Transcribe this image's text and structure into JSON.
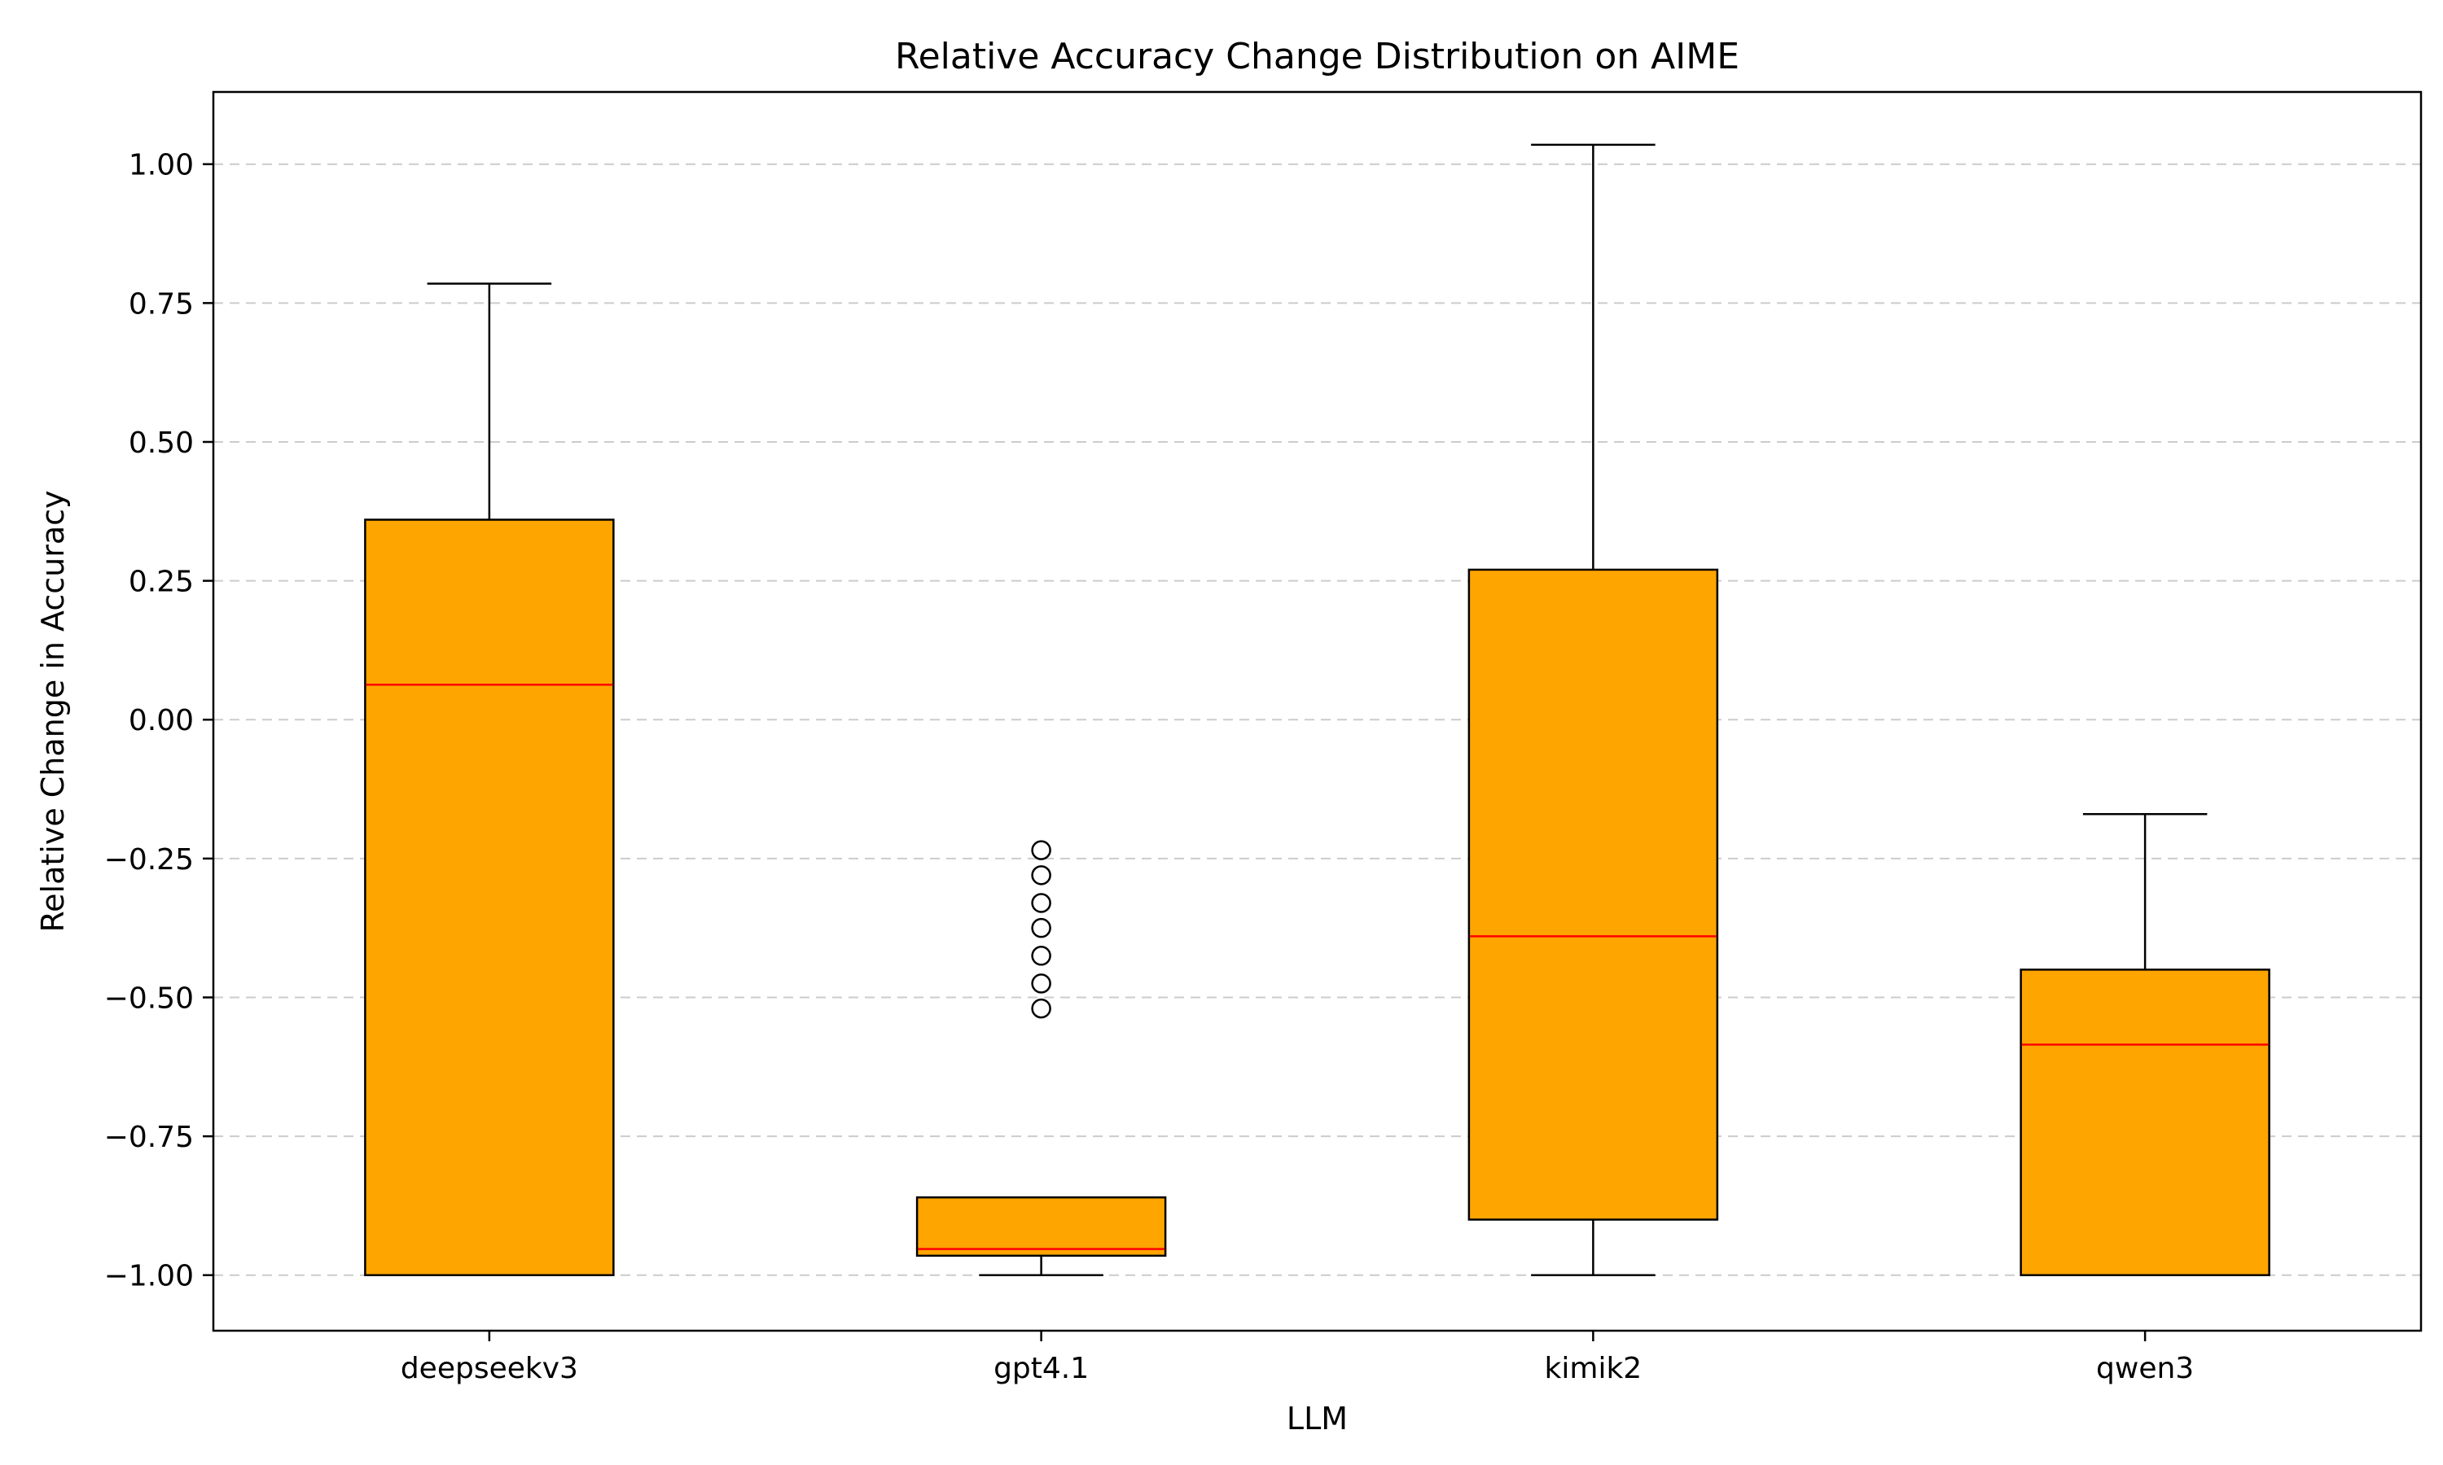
{
  "chart_data": {
    "type": "box",
    "title": "Relative Accuracy Change Distribution on AIME",
    "xlabel": "LLM",
    "ylabel": "Relative Change in Accuracy",
    "ylim": [
      -1.1,
      1.13
    ],
    "yticks": [
      -1.0,
      -0.75,
      -0.5,
      -0.25,
      0.0,
      0.25,
      0.5,
      0.75,
      1.0
    ],
    "ytick_labels": [
      "−1.00",
      "−0.75",
      "−0.50",
      "−0.25",
      "0.00",
      "0.25",
      "0.50",
      "0.75",
      "1.00"
    ],
    "grid": "y-dashed",
    "categories": [
      "deepseekv3",
      "gpt4.1",
      "kimik2",
      "qwen3"
    ],
    "boxes": [
      {
        "whisker_low": -1.0,
        "q1": -1.0,
        "median": 0.063,
        "q3": 0.36,
        "whisker_high": 0.785,
        "outliers": []
      },
      {
        "whisker_low": -1.0,
        "q1": -0.965,
        "median": -0.953,
        "q3": -0.86,
        "whisker_high": -0.86,
        "outliers": [
          -0.235,
          -0.28,
          -0.33,
          -0.375,
          -0.425,
          -0.475,
          -0.52
        ]
      },
      {
        "whisker_low": -1.0,
        "q1": -0.9,
        "median": -0.39,
        "q3": 0.27,
        "whisker_high": 1.035,
        "outliers": []
      },
      {
        "whisker_low": -1.0,
        "q1": -1.0,
        "median": -0.585,
        "q3": -0.45,
        "whisker_high": -0.17,
        "outliers": []
      }
    ],
    "colors": {
      "box_fill": "#FFA500",
      "box_edge": "#000000",
      "median": "#FF0000",
      "grid": "#CCCCCC"
    }
  }
}
